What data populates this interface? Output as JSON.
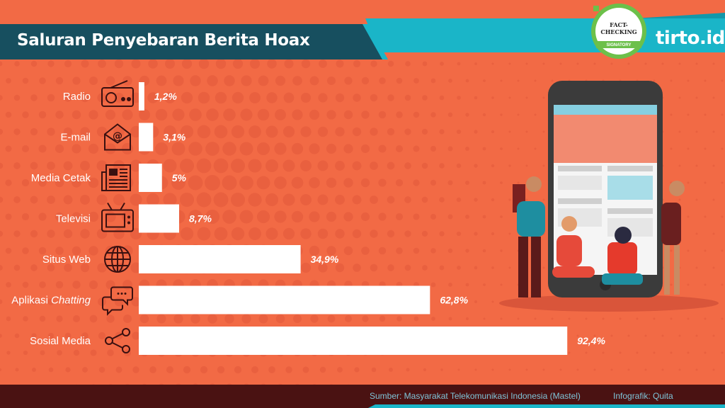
{
  "header": {
    "title": "Saluran Penyebaran Berita Hoax"
  },
  "brand": {
    "logo_text": "tirto.id",
    "badge_title": "FACT-CHECKING",
    "badge_label": "SIGNATORY"
  },
  "footer": {
    "source": "Sumber:  Masyarakat Telekomunikasi Indonesia (Mastel)",
    "credit": "Infografik: Quita"
  },
  "colors": {
    "background": "#f26a45",
    "dot": "#e2573a",
    "bar": "#ffffff",
    "teal": "#1ab5c8",
    "footer": "#4a1212",
    "label": "#ffffff",
    "icon": "#3a1010"
  },
  "chart_data": {
    "type": "bar",
    "orientation": "horizontal",
    "categories": [
      "Radio",
      "E-mail",
      "Media Cetak",
      "Televisi",
      "Situs Web",
      "Aplikasi Chatting",
      "Sosial Media"
    ],
    "category_icons": [
      "radio-icon",
      "email-icon",
      "newspaper-icon",
      "television-icon",
      "globe-icon",
      "chat-icon",
      "share-icon"
    ],
    "values": [
      1.2,
      3.1,
      5.0,
      8.7,
      34.9,
      62.8,
      92.4
    ],
    "value_labels": [
      "1,2%",
      "3,1%",
      "5%",
      "8,7%",
      "34,9%",
      "62,8%",
      "92,4%"
    ],
    "xlim": [
      0,
      100
    ],
    "title": "Saluran Penyebaran Berita Hoax",
    "grid": false,
    "legend": "none"
  }
}
